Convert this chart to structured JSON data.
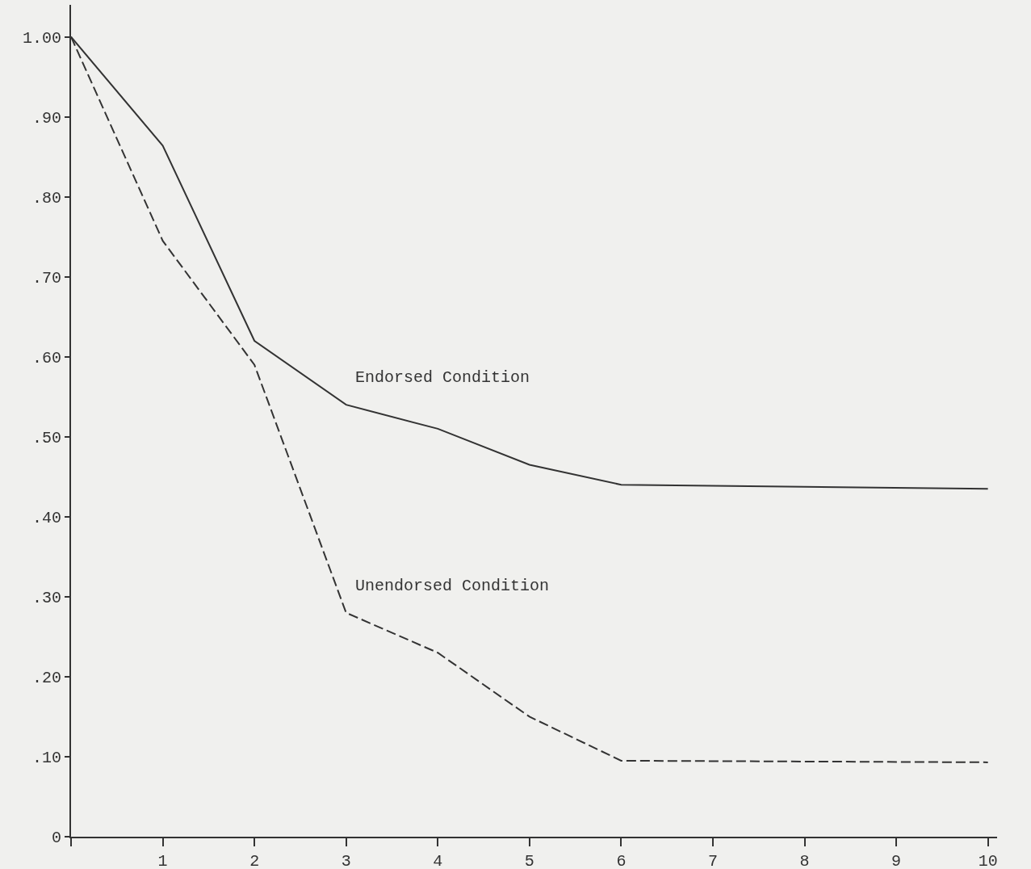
{
  "chart_data": {
    "type": "line",
    "xlim": [
      0,
      10.1
    ],
    "xticks": [
      {
        "value": 0,
        "label": null
      },
      1,
      2,
      3,
      4,
      5,
      6,
      7,
      8,
      9,
      10
    ],
    "ylim": [
      0,
      1.04
    ],
    "yticks": [
      0,
      {
        "value": 0.1,
        "label": ".10"
      },
      {
        "value": 0.2,
        "label": ".20"
      },
      {
        "value": 0.3,
        "label": ".30"
      },
      {
        "value": 0.4,
        "label": ".40"
      },
      {
        "value": 0.5,
        "label": ".50"
      },
      {
        "value": 0.6,
        "label": ".60"
      },
      {
        "value": 0.7,
        "label": ".70"
      },
      {
        "value": 0.8,
        "label": ".80"
      },
      {
        "value": 0.9,
        "label": ".90"
      },
      {
        "value": 1.0,
        "label": "1.00"
      }
    ],
    "grid": false,
    "legend": false,
    "marker": "none",
    "series": [
      {
        "name": "Endorsed Condition",
        "color": "#333333",
        "line_style": "solid",
        "x": [
          0,
          1,
          2,
          3,
          4,
          5,
          6,
          10
        ],
        "values": [
          1.0,
          0.864,
          0.62,
          0.54,
          0.51,
          0.465,
          0.44,
          0.435
        ]
      },
      {
        "name": "Unendorsed Condition",
        "color": "#333333",
        "line_style": "dashed",
        "x": [
          0,
          1,
          2,
          3,
          4,
          5,
          6,
          10
        ],
        "values": [
          1.0,
          0.745,
          0.59,
          0.28,
          0.23,
          0.15,
          0.095,
          0.093
        ]
      }
    ]
  }
}
